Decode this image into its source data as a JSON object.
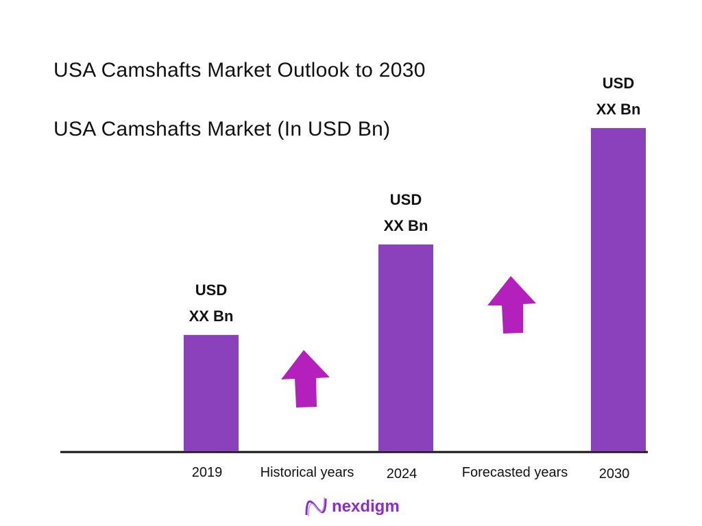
{
  "chart_data": {
    "type": "bar",
    "title": "USA Camshafts Market Outlook to 2030",
    "subtitle": "USA Camshafts Market (In USD Bn)",
    "categories": [
      "2019",
      "2024",
      "2030"
    ],
    "values": [
      0.36,
      0.64,
      1.0
    ],
    "data_labels": [
      [
        "USD",
        "XX Bn"
      ],
      [
        "USD",
        "XX Bn"
      ],
      [
        "USD",
        "XX Bn"
      ]
    ],
    "period_labels": [
      "Historical years",
      "Forecasted years"
    ],
    "grid": false,
    "bar_color": "#8b41bb",
    "arrow_color": "#b320bc"
  },
  "brand": {
    "name": "nexdigm",
    "color": "#8a2bd0"
  }
}
